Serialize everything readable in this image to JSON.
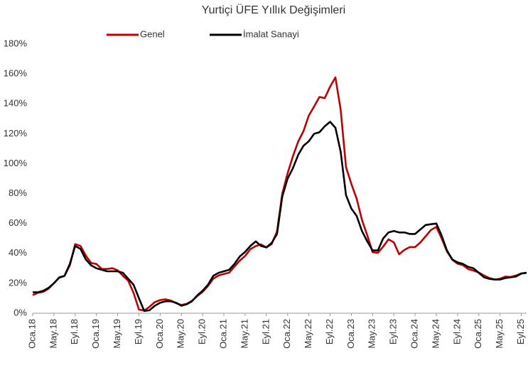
{
  "chart_data": {
    "type": "line",
    "title": "Yurtiçi ÜFE Yıllık Değişimleri",
    "categories": [
      "Oca.18",
      null,
      null,
      null,
      "May.18",
      null,
      null,
      null,
      "Eyl.18",
      null,
      null,
      null,
      "Oca.19",
      null,
      null,
      null,
      "May.19",
      null,
      null,
      null,
      "Eyl.19",
      null,
      null,
      null,
      "Oca.20",
      null,
      null,
      null,
      "May.20",
      null,
      null,
      null,
      "Eyl.20",
      null,
      null,
      null,
      "Oca.21",
      null,
      null,
      null,
      "May.21",
      null,
      null,
      null,
      "Eyl.21",
      null,
      null,
      null,
      "Oca.22",
      null,
      null,
      null,
      "May.22",
      null,
      null,
      null,
      "Eyl.22",
      null,
      null,
      null,
      "Oca.23",
      null,
      null,
      null,
      "May.23",
      null,
      null,
      null,
      "Eyl.23",
      null,
      null,
      null,
      "Oca.24",
      null,
      null,
      null,
      "May.24",
      null,
      null,
      null,
      "Eyl.24",
      null,
      null,
      null,
      "Oca.25",
      null,
      null,
      null,
      "May.25",
      null,
      null,
      null,
      "Eyl.25",
      null
    ],
    "series": [
      {
        "name": "Genel",
        "color": "#c00000",
        "values": [
          12.1,
          13.7,
          14.3,
          16.4,
          20.2,
          23.7,
          25.0,
          32.1,
          46.2,
          45.0,
          38.5,
          33.6,
          32.9,
          29.6,
          29.6,
          30.1,
          28.7,
          25.0,
          21.7,
          13.5,
          2.5,
          1.7,
          4.3,
          7.4,
          8.8,
          9.3,
          8.5,
          6.7,
          5.5,
          6.2,
          8.3,
          11.5,
          14.3,
          18.2,
          23.1,
          25.2,
          26.2,
          27.1,
          31.2,
          35.2,
          38.3,
          42.9,
          44.9,
          46.0,
          44.0,
          46.3,
          54.6,
          79.9,
          93.5,
          105.0,
          114.9,
          121.8,
          132.2,
          138.3,
          144.6,
          143.8,
          151.5,
          157.7,
          136.0,
          97.7,
          86.5,
          76.6,
          62.4,
          52.1,
          40.8,
          40.4,
          44.5,
          49.4,
          47.4,
          39.4,
          42.3,
          44.2,
          44.2,
          47.3,
          51.5,
          55.7,
          57.7,
          50.1,
          41.4,
          35.8,
          33.1,
          32.2,
          29.5,
          28.5,
          27.2,
          25.2,
          23.5,
          22.5,
          23.1,
          24.5,
          24.2,
          25.2,
          26.6,
          27.0
        ]
      },
      {
        "name": "İmalat Sanayi",
        "color": "#000000",
        "values": [
          14,
          14,
          15,
          17,
          20,
          24,
          25,
          33,
          45,
          43,
          36,
          32,
          30,
          29,
          28,
          28,
          28,
          27,
          23,
          19,
          10,
          1.5,
          2,
          5,
          7,
          8,
          8,
          7,
          5,
          6,
          8,
          12,
          15,
          19,
          25,
          27,
          28,
          29,
          33,
          38,
          41,
          45,
          48,
          45,
          44,
          47,
          53,
          78,
          90,
          97,
          106,
          112,
          115,
          120,
          121,
          125,
          128,
          124,
          108,
          79,
          70,
          65,
          55,
          48,
          42,
          42,
          50,
          54,
          55,
          54,
          54,
          53,
          53,
          56,
          59,
          59.5,
          60,
          52,
          42,
          36,
          34,
          33,
          31,
          30,
          27,
          24,
          23,
          22.5,
          22.5,
          23.5,
          24,
          24.5,
          26.5,
          27
        ]
      }
    ],
    "ylim": [
      0,
      180
    ],
    "yticks": [
      {
        "value": 0,
        "label": "0%"
      },
      {
        "value": 20,
        "label": "20%"
      },
      {
        "value": 40,
        "label": "40%"
      },
      {
        "value": 60,
        "label": "60%"
      },
      {
        "value": 80,
        "label": "80%"
      },
      {
        "value": 100,
        "label": "100%"
      },
      {
        "value": 120,
        "label": "120%"
      },
      {
        "value": 140,
        "label": "140%"
      },
      {
        "value": 160,
        "label": "160%"
      },
      {
        "value": 180,
        "label": "180%"
      }
    ],
    "grid": false,
    "legend": "top"
  }
}
